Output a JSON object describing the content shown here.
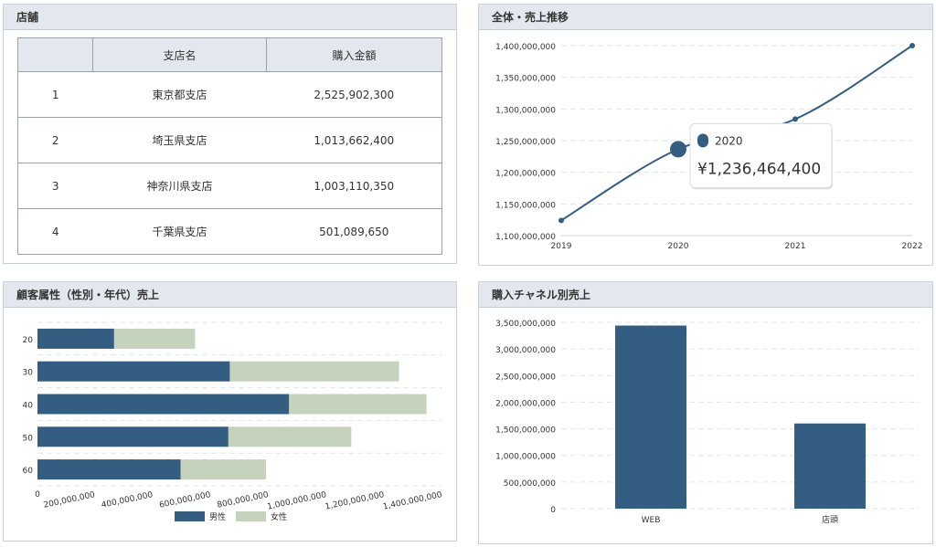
{
  "store_panel": {
    "title": "店舗",
    "columns": [
      "",
      "支店名",
      "購入金額"
    ],
    "rows": [
      {
        "no": "1",
        "name": "東京都支店",
        "amount": "2,525,902,300"
      },
      {
        "no": "2",
        "name": "埼玉県支店",
        "amount": "1,013,662,400"
      },
      {
        "no": "3",
        "name": "神奈川県支店",
        "amount": "1,003,110,350"
      },
      {
        "no": "4",
        "name": "千葉県支店",
        "amount": "501,089,650"
      }
    ]
  },
  "trend_panel": {
    "title": "全体・売上推移"
  },
  "attr_panel": {
    "title": "顧客属性（性別・年代）売上"
  },
  "channel_panel": {
    "title": "購入チャネル別売上"
  },
  "colors": {
    "primary": "#345d82",
    "secondary": "#c6d3bc",
    "grid": "#e3e6ea"
  },
  "chart_data": [
    {
      "id": "trend",
      "type": "line",
      "title": "全体・売上推移",
      "x": [
        "2019",
        "2020",
        "2021",
        "2022"
      ],
      "series": [
        {
          "values": [
            1124000000,
            1236464400,
            1284000000,
            1400000000
          ]
        }
      ],
      "ylim": [
        1100000000,
        1400000000
      ],
      "yticks": [
        1100000000,
        1150000000,
        1200000000,
        1250000000,
        1300000000,
        1350000000,
        1400000000
      ],
      "ytick_labels": [
        "1,100,000,000",
        "1,150,000,000",
        "1,200,000,000",
        "1,250,000,000",
        "1,300,000,000",
        "1,350,000,000",
        "1,400,000,000"
      ],
      "grid": true,
      "tooltip": {
        "index": 1,
        "label": "2020",
        "value_text": "¥1,236,464,400"
      }
    },
    {
      "id": "attr",
      "type": "bar",
      "orientation": "horizontal",
      "stacked": true,
      "title": "顧客属性（性別・年代）売上",
      "categories": [
        "20",
        "30",
        "40",
        "50",
        "60"
      ],
      "series": [
        {
          "name": "男性",
          "values": [
            265000000,
            665000000,
            870000000,
            660000000,
            495000000
          ]
        },
        {
          "name": "女性",
          "values": [
            280000000,
            585000000,
            475000000,
            425000000,
            295000000
          ]
        }
      ],
      "xlim": [
        0,
        1400000000
      ],
      "xticks": [
        0,
        200000000,
        400000000,
        600000000,
        800000000,
        1000000000,
        1200000000,
        1400000000
      ],
      "xtick_labels": [
        "0",
        "200,000,000",
        "400,000,000",
        "600,000,000",
        "800,000,000",
        "1,000,000,000",
        "1,200,000,000",
        "1,400,000,000"
      ],
      "legend": "bottom",
      "grid": true
    },
    {
      "id": "channel",
      "type": "bar",
      "title": "購入チャネル別売上",
      "categories": [
        "WEB",
        "店頭"
      ],
      "values": [
        3440000000,
        1600000000
      ],
      "ylim": [
        0,
        3500000000
      ],
      "yticks": [
        0,
        500000000,
        1000000000,
        1500000000,
        2000000000,
        2500000000,
        3000000000,
        3500000000
      ],
      "ytick_labels": [
        "0",
        "500,000,000",
        "1,000,000,000",
        "1,500,000,000",
        "2,000,000,000",
        "2,500,000,000",
        "3,000,000,000",
        "3,500,000,000"
      ],
      "grid": true
    }
  ]
}
